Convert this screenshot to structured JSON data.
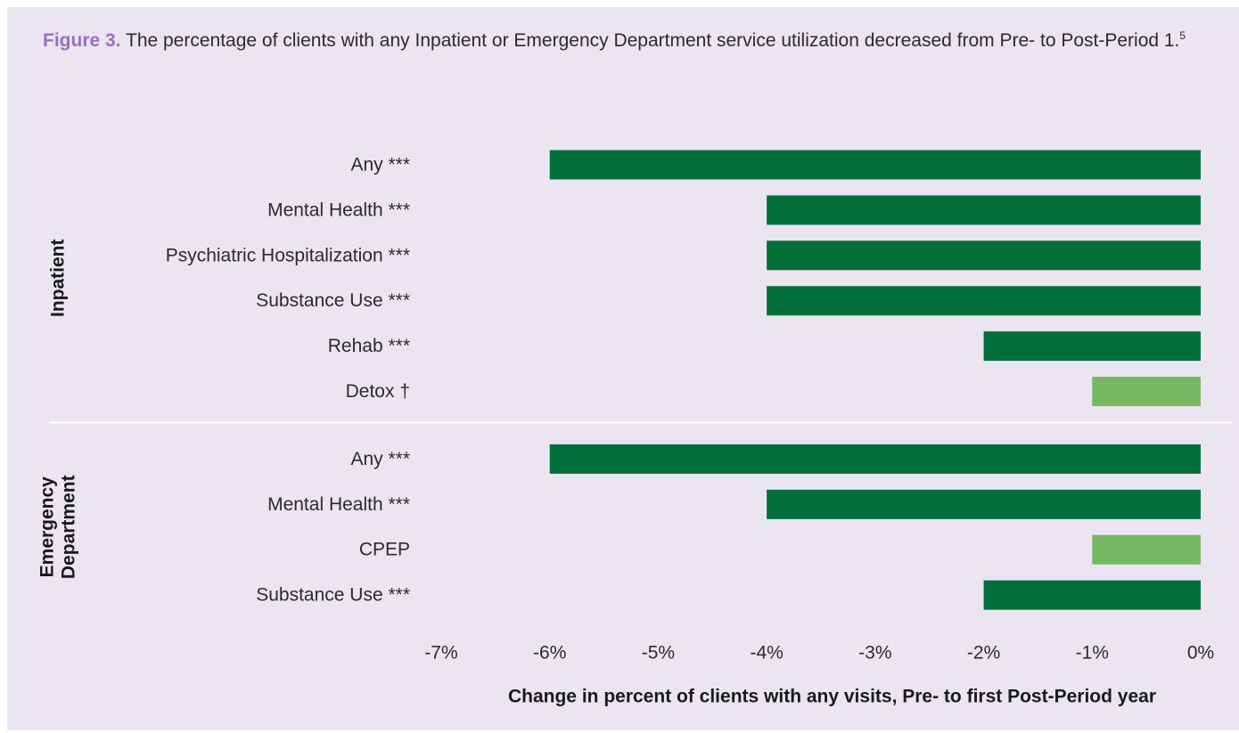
{
  "caption": {
    "label": "Figure 3.",
    "text": " The percentage of clients with any Inpatient or Emergency Department service utilization decreased from Pre- to Post-Period 1.",
    "footnote": "5"
  },
  "colors": {
    "background": "#ebe5f2",
    "significant": "#006f3a",
    "not_significant": "#76b862",
    "caption_label": "#9a6fc0",
    "divider": "#ffffff"
  },
  "chart_data": {
    "type": "bar",
    "orientation": "horizontal",
    "xlabel": "Change in percent of clients with any visits, Pre- to first Post-Period year",
    "xlim": [
      -7,
      0
    ],
    "xticks": [
      -7,
      -6,
      -5,
      -4,
      -3,
      -2,
      -1,
      0
    ],
    "xtick_labels": [
      "-7%",
      "-6%",
      "-5%",
      "-4%",
      "-3%",
      "-2%",
      "-1%",
      "0%"
    ],
    "grid": false,
    "groups": [
      {
        "name_lines": [
          "Inpatient"
        ],
        "bars": [
          {
            "label": "Any ***",
            "value": -6,
            "significant": true
          },
          {
            "label": "Mental Health ***",
            "value": -4,
            "significant": true
          },
          {
            "label": "Psychiatric Hospitalization ***",
            "value": -4,
            "significant": true
          },
          {
            "label": "Substance Use ***",
            "value": -4,
            "significant": true
          },
          {
            "label": "Rehab ***",
            "value": -2,
            "significant": true
          },
          {
            "label": "Detox †",
            "value": -1,
            "significant": false
          }
        ]
      },
      {
        "name_lines": [
          "Emergency",
          "Department"
        ],
        "bars": [
          {
            "label": "Any ***",
            "value": -6,
            "significant": true
          },
          {
            "label": "Mental Health ***",
            "value": -4,
            "significant": true
          },
          {
            "label": "CPEP",
            "value": -1,
            "significant": false
          },
          {
            "label": "Substance Use ***",
            "value": -2,
            "significant": true
          }
        ]
      }
    ]
  }
}
